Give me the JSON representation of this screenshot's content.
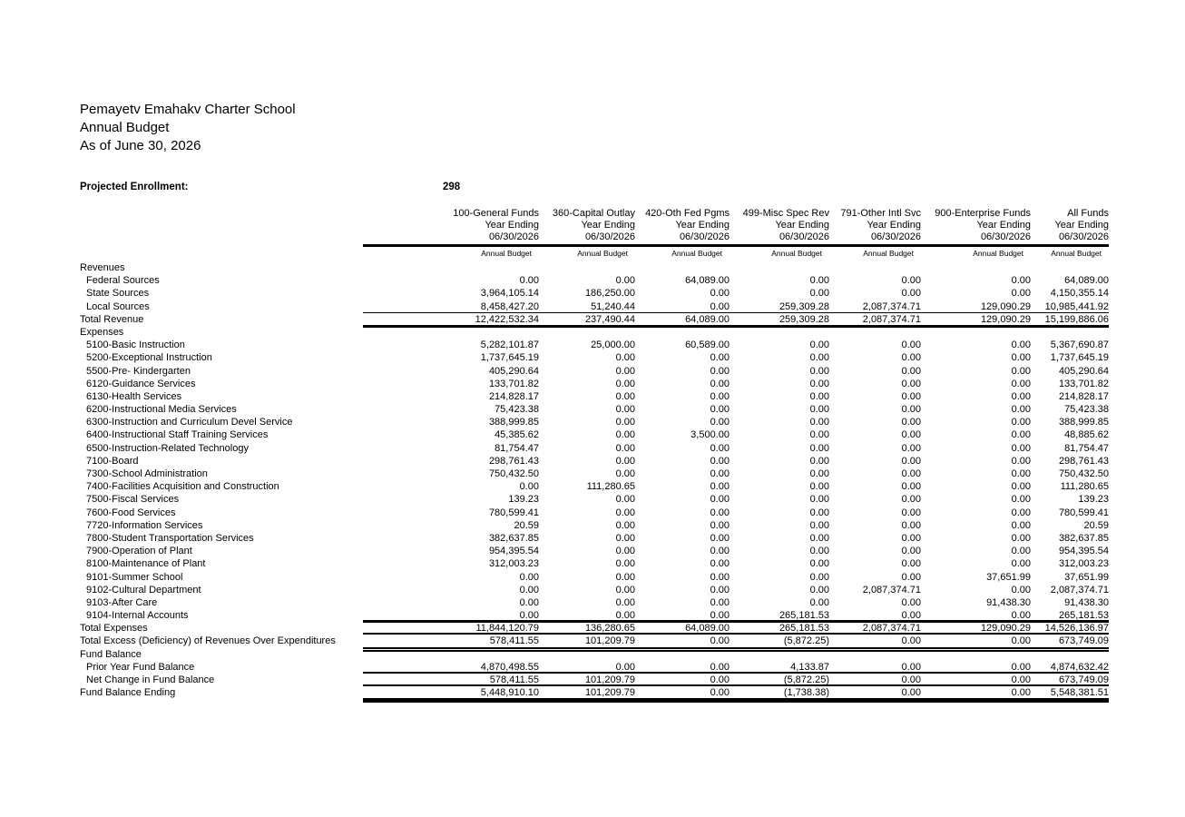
{
  "document": {
    "title_lines": [
      "Pemayetv Emahakv Charter School",
      "Annual Budget",
      "As of June 30, 2026"
    ],
    "enrollment_label": "Projected Enrollment:",
    "enrollment_value": "298"
  },
  "table": {
    "columns": [
      "100-General Funds",
      "360-Capital Outlay",
      "420-Oth Fed Pgms",
      "499-Misc Spec Rev",
      "791-Other Intl Svc",
      "900-Enterprise Funds",
      "All Funds"
    ],
    "year_ending_label": "Year Ending",
    "date_label": "06/30/2026",
    "budget_label": "Annual Budget",
    "rows": [
      {
        "label": "Revenues",
        "type": "section"
      },
      {
        "label": "Federal Sources",
        "indent": 1,
        "values": [
          "0.00",
          "0.00",
          "64,089.00",
          "0.00",
          "0.00",
          "0.00",
          "64,089.00"
        ]
      },
      {
        "label": "State Sources",
        "indent": 1,
        "values": [
          "3,964,105.14",
          "186,250.00",
          "0.00",
          "0.00",
          "0.00",
          "0.00",
          "4,150,355.14"
        ]
      },
      {
        "label": "Local Sources",
        "indent": 1,
        "values": [
          "8,458,427.20",
          "51,240.44",
          "0.00",
          "259,309.28",
          "2,087,374.71",
          "129,090.29",
          "10,985,441.92"
        ]
      },
      {
        "label": "Total Revenue",
        "values": [
          "12,422,532.34",
          "237,490.44",
          "64,089.00",
          "259,309.28",
          "2,087,374.71",
          "129,090.29",
          "15,199,886.06"
        ],
        "rules": "rt-thin rb-thick"
      },
      {
        "label": "Expenses",
        "type": "section"
      },
      {
        "label": "5100-Basic Instruction",
        "indent": 1,
        "values": [
          "5,282,101.87",
          "25,000.00",
          "60,589.00",
          "0.00",
          "0.00",
          "0.00",
          "5,367,690.87"
        ]
      },
      {
        "label": "5200-Exceptional Instruction",
        "indent": 1,
        "values": [
          "1,737,645.19",
          "0.00",
          "0.00",
          "0.00",
          "0.00",
          "0.00",
          "1,737,645.19"
        ]
      },
      {
        "label": "5500-Pre- Kindergarten",
        "indent": 1,
        "values": [
          "405,290.64",
          "0.00",
          "0.00",
          "0.00",
          "0.00",
          "0.00",
          "405,290.64"
        ]
      },
      {
        "label": "6120-Guidance Services",
        "indent": 1,
        "values": [
          "133,701.82",
          "0.00",
          "0.00",
          "0.00",
          "0.00",
          "0.00",
          "133,701.82"
        ]
      },
      {
        "label": "6130-Health Services",
        "indent": 1,
        "values": [
          "214,828.17",
          "0.00",
          "0.00",
          "0.00",
          "0.00",
          "0.00",
          "214,828.17"
        ]
      },
      {
        "label": "6200-Instructional Media Services",
        "indent": 1,
        "values": [
          "75,423.38",
          "0.00",
          "0.00",
          "0.00",
          "0.00",
          "0.00",
          "75,423.38"
        ]
      },
      {
        "label": "6300-Instruction and Curriculum Devel Service",
        "indent": 1,
        "values": [
          "388,999.85",
          "0.00",
          "0.00",
          "0.00",
          "0.00",
          "0.00",
          "388,999.85"
        ]
      },
      {
        "label": "6400-Instructional Staff Training Services",
        "indent": 1,
        "values": [
          "45,385.62",
          "0.00",
          "3,500.00",
          "0.00",
          "0.00",
          "0.00",
          "48,885.62"
        ]
      },
      {
        "label": "6500-Instruction-Related Technology",
        "indent": 1,
        "values": [
          "81,754.47",
          "0.00",
          "0.00",
          "0.00",
          "0.00",
          "0.00",
          "81,754.47"
        ]
      },
      {
        "label": "7100-Board",
        "indent": 1,
        "values": [
          "298,761.43",
          "0.00",
          "0.00",
          "0.00",
          "0.00",
          "0.00",
          "298,761.43"
        ]
      },
      {
        "label": "7300-School Administration",
        "indent": 1,
        "values": [
          "750,432.50",
          "0.00",
          "0.00",
          "0.00",
          "0.00",
          "0.00",
          "750,432.50"
        ]
      },
      {
        "label": "7400-Facilities Acquisition and Construction",
        "indent": 1,
        "values": [
          "0.00",
          "111,280.65",
          "0.00",
          "0.00",
          "0.00",
          "0.00",
          "111,280.65"
        ]
      },
      {
        "label": "7500-Fiscal Services",
        "indent": 1,
        "values": [
          "139.23",
          "0.00",
          "0.00",
          "0.00",
          "0.00",
          "0.00",
          "139.23"
        ]
      },
      {
        "label": "7600-Food Services",
        "indent": 1,
        "values": [
          "780,599.41",
          "0.00",
          "0.00",
          "0.00",
          "0.00",
          "0.00",
          "780,599.41"
        ]
      },
      {
        "label": "7720-Information Services",
        "indent": 1,
        "values": [
          "20.59",
          "0.00",
          "0.00",
          "0.00",
          "0.00",
          "0.00",
          "20.59"
        ]
      },
      {
        "label": "7800-Student Transportation Services",
        "indent": 1,
        "values": [
          "382,637.85",
          "0.00",
          "0.00",
          "0.00",
          "0.00",
          "0.00",
          "382,637.85"
        ]
      },
      {
        "label": "7900-Operation of Plant",
        "indent": 1,
        "values": [
          "954,395.54",
          "0.00",
          "0.00",
          "0.00",
          "0.00",
          "0.00",
          "954,395.54"
        ]
      },
      {
        "label": "8100-Maintenance of Plant",
        "indent": 1,
        "values": [
          "312,003.23",
          "0.00",
          "0.00",
          "0.00",
          "0.00",
          "0.00",
          "312,003.23"
        ]
      },
      {
        "label": "9101-Summer School",
        "indent": 1,
        "values": [
          "0.00",
          "0.00",
          "0.00",
          "0.00",
          "0.00",
          "37,651.99",
          "37,651.99"
        ]
      },
      {
        "label": "9102-Cultural Department",
        "indent": 1,
        "values": [
          "0.00",
          "0.00",
          "0.00",
          "0.00",
          "2,087,374.71",
          "0.00",
          "2,087,374.71"
        ]
      },
      {
        "label": "9103-After Care",
        "indent": 1,
        "values": [
          "0.00",
          "0.00",
          "0.00",
          "0.00",
          "0.00",
          "91,438.30",
          "91,438.30"
        ]
      },
      {
        "label": "9104-Internal Accounts",
        "indent": 1,
        "values": [
          "0.00",
          "0.00",
          "0.00",
          "265,181.53",
          "0.00",
          "0.00",
          "265,181.53"
        ]
      },
      {
        "label": "Total Expenses",
        "values": [
          "11,844,120.79",
          "136,280.65",
          "64,089.00",
          "265,181.53",
          "2,087,374.71",
          "129,090.29",
          "14,526,136.97"
        ],
        "rules": "rt-thick rb-thin"
      },
      {
        "label": "Total Excess (Deficiency) of Revenues Over Expenditures",
        "values": [
          "578,411.55",
          "101,209.79",
          "0.00",
          "(5,872.25)",
          "0.00",
          "0.00",
          "673,749.09"
        ],
        "rules": "rb-double"
      },
      {
        "label": "Fund Balance",
        "type": "section"
      },
      {
        "label": "Prior Year Fund Balance",
        "indent": 1,
        "values": [
          "4,870,498.55",
          "0.00",
          "0.00",
          "4,133.87",
          "0.00",
          "0.00",
          "4,874,632.42"
        ],
        "rules": "rb-thin"
      },
      {
        "label": "Net Change in Fund Balance",
        "indent": 1,
        "values": [
          "578,411.55",
          "101,209.79",
          "0.00",
          "(5,872.25)",
          "0.00",
          "0.00",
          "673,749.09"
        ],
        "rules": "rb-thin"
      },
      {
        "label": "Fund Balance Ending",
        "values": [
          "5,448,910.10",
          "101,209.79",
          "0.00",
          "(1,738.38)",
          "0.00",
          "0.00",
          "5,548,381.51"
        ],
        "rules": "rb-heavy"
      }
    ]
  }
}
